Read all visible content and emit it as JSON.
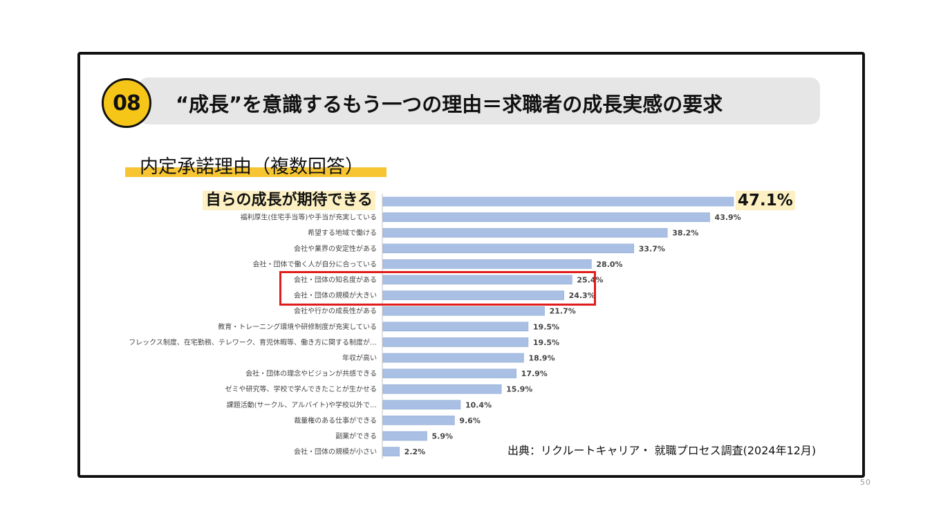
{
  "slide": {
    "badge": "08",
    "title": "“成長”を意識するもう一つの理由＝求職者の成長実感の要求",
    "subtitle": "内定承諾理由（複数回答）",
    "source": "出典：リクルートキャリア・ 就職プロセス調査(2024年12月)",
    "page_number": "50"
  },
  "colors": {
    "bar": "#a9bfe3",
    "bar_stroke": "#8faad6",
    "highlight": "#e01b1b",
    "badge": "#f5c518"
  },
  "chart_data": {
    "type": "bar",
    "orientation": "horizontal",
    "title": "内定承諾理由（複数回答）",
    "categories": [
      "自らの成長が期待できる",
      "福利厚生(住宅手当等)や手当が充実している",
      "希望する地域で働ける",
      "会社や業界の安定性がある",
      "会社・団体で働く人が自分に合っている",
      "会社・団体の知名度がある",
      "会社・団体の規模が大きい",
      "会社や行かの成長性がある",
      "教育・トレーニング環境や研修制度が充実している",
      "フレックス制度、在宅勤務、テレワーク、育児休暇等、働き方に関する制度が…",
      "年収が高い",
      "会社・団体の理念やビジョンが共感できる",
      "ゼミや研究等、学校で学んできたことが生かせる",
      "課題活動(サークル、アルバイト)や学校以外で…",
      "裁量権のある仕事ができる",
      "副業ができる",
      "会社・団体の規模が小さい"
    ],
    "values": [
      47.1,
      43.9,
      38.2,
      33.7,
      28.0,
      25.4,
      24.3,
      21.7,
      19.5,
      19.5,
      18.9,
      17.9,
      15.9,
      10.4,
      9.6,
      5.9,
      2.2
    ],
    "value_labels": [
      "47.1%",
      "43.9%",
      "38.2%",
      "33.7%",
      "28.0%",
      "25.4%",
      "24.3%",
      "21.7%",
      "19.5%",
      "19.5%",
      "18.9%",
      "17.9%",
      "15.9%",
      "10.4%",
      "9.6%",
      "5.9%",
      "2.2%"
    ],
    "unit": "%",
    "highlighted_top": 0,
    "boxed": [
      5,
      6
    ]
  }
}
